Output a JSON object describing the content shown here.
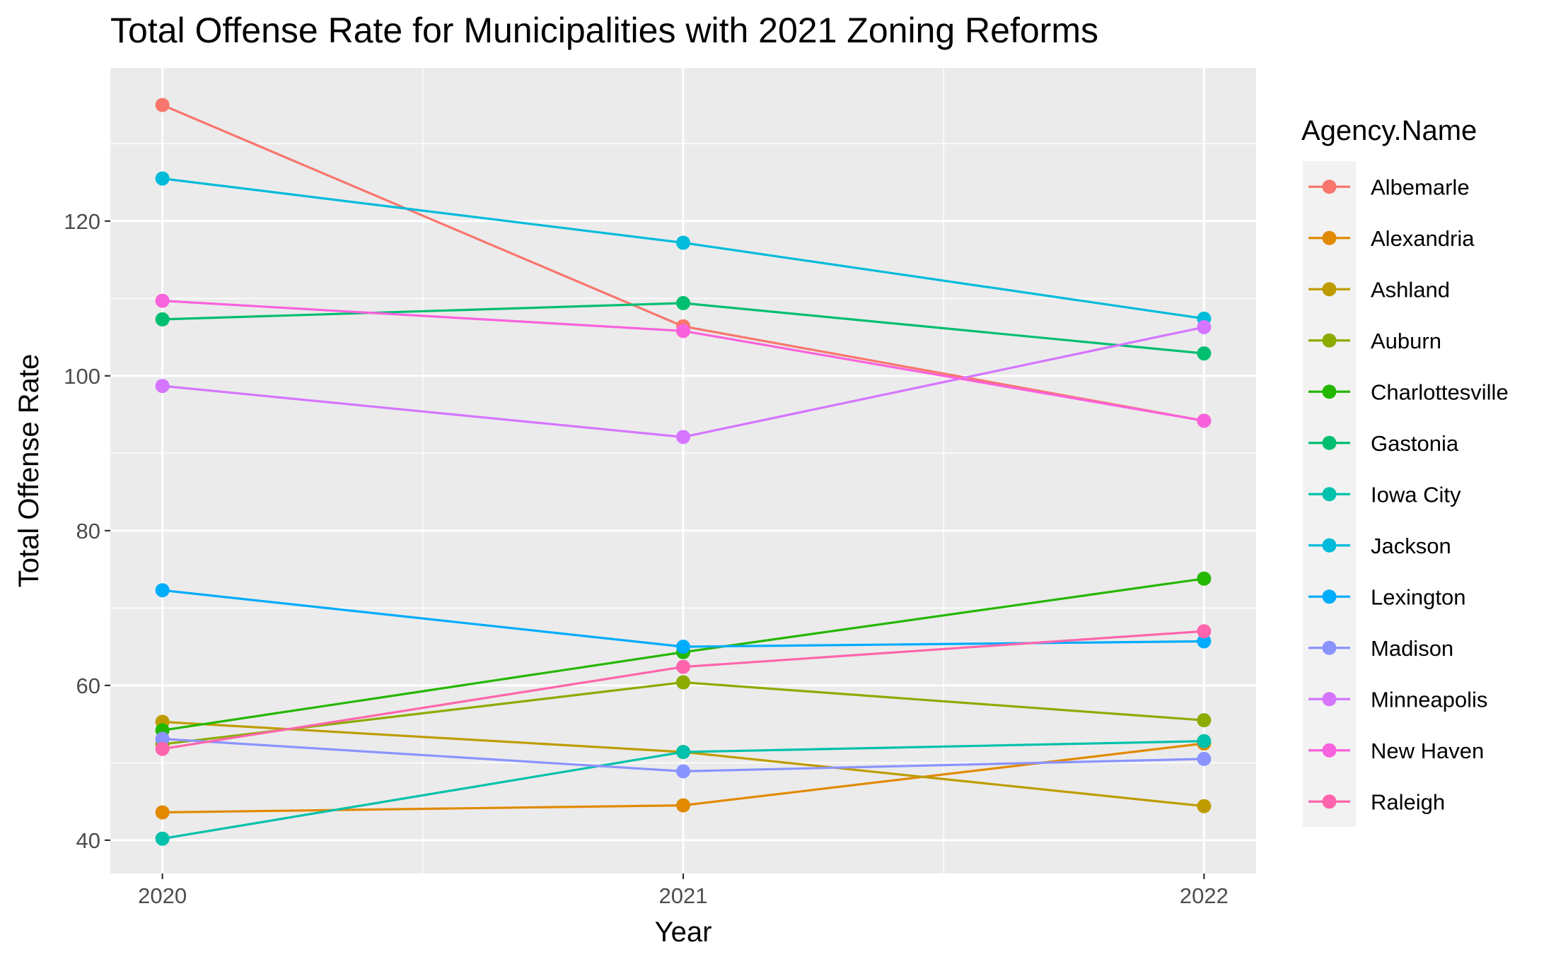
{
  "chart_data": {
    "type": "line",
    "title": "Total Offense Rate for Municipalities with 2021 Zoning Reforms",
    "xlabel": "Year",
    "ylabel": "Total Offense Rate",
    "x": [
      2020,
      2021,
      2022
    ],
    "x_tick_labels": [
      "2020",
      "2021",
      "2022"
    ],
    "xlim": [
      2019.9,
      2022.1
    ],
    "ylim": [
      35.7,
      139.8
    ],
    "y_ticks": [
      40,
      60,
      80,
      100,
      120
    ],
    "y_tick_labels": [
      "40",
      "60",
      "80",
      "100",
      "120"
    ],
    "grid": true,
    "legend_title": "Agency.Name",
    "legend_position": "right",
    "series": [
      {
        "name": "Albemarle",
        "color": "#F8766D",
        "values": [
          135.0,
          106.4,
          94.2
        ]
      },
      {
        "name": "Alexandria",
        "color": "#E18A00",
        "values": [
          43.6,
          44.5,
          52.5
        ]
      },
      {
        "name": "Ashland",
        "color": "#BE9C00",
        "values": [
          55.3,
          51.4,
          44.4
        ]
      },
      {
        "name": "Auburn",
        "color": "#8CAB00",
        "values": [
          52.4,
          60.4,
          55.5
        ]
      },
      {
        "name": "Charlottesville",
        "color": "#24B700",
        "values": [
          54.2,
          64.3,
          73.8
        ]
      },
      {
        "name": "Gastonia",
        "color": "#00BE70",
        "values": [
          107.3,
          109.4,
          102.9
        ]
      },
      {
        "name": "Iowa City",
        "color": "#00C1AB",
        "values": [
          40.2,
          51.4,
          52.8
        ]
      },
      {
        "name": "Jackson",
        "color": "#00BBDA",
        "values": [
          125.5,
          117.2,
          107.4
        ]
      },
      {
        "name": "Lexington",
        "color": "#00ACFC",
        "values": [
          72.3,
          65.0,
          65.7
        ]
      },
      {
        "name": "Madison",
        "color": "#8B93FF",
        "values": [
          53.1,
          48.9,
          50.5
        ]
      },
      {
        "name": "Minneapolis",
        "color": "#D575FE",
        "values": [
          98.7,
          92.1,
          106.3
        ]
      },
      {
        "name": "New Haven",
        "color": "#F962DD",
        "values": [
          109.7,
          105.8,
          94.2
        ]
      },
      {
        "name": "Raleigh",
        "color": "#FF65AC",
        "values": [
          51.8,
          62.4,
          67.0
        ]
      }
    ]
  }
}
